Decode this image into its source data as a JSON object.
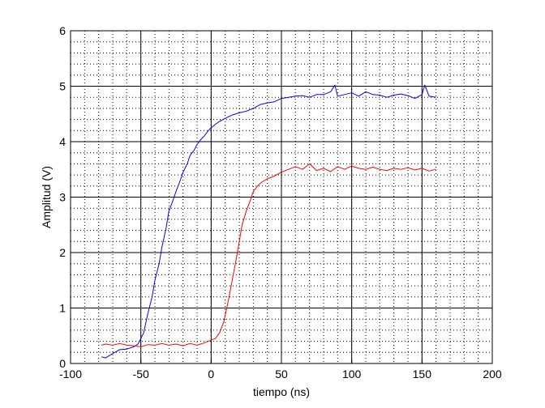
{
  "chart_data": {
    "type": "line",
    "xlabel": "tiempo (ns)",
    "ylabel": "Amplitud (V)",
    "xlim": [
      -100,
      200
    ],
    "ylim": [
      0,
      6
    ],
    "xticks": [
      -100,
      -50,
      0,
      50,
      100,
      150,
      200
    ],
    "yticks": [
      0,
      1,
      2,
      3,
      4,
      5,
      6
    ],
    "grid": true,
    "minor_grid": true,
    "series": [
      {
        "color": "#0000ff",
        "x": [
          -78,
          -75,
          -70,
          -65,
          -60,
          -55,
          -52,
          -48,
          -45,
          -42,
          -40,
          -37,
          -35,
          -32,
          -30,
          -27,
          -25,
          -22,
          -20,
          -17,
          -15,
          -12,
          -10,
          -7,
          -5,
          -2,
          0,
          5,
          10,
          15,
          20,
          25,
          30,
          35,
          40,
          45,
          50,
          55,
          60,
          65,
          70,
          75,
          80,
          85,
          88,
          90,
          95,
          100,
          105,
          110,
          115,
          120,
          125,
          130,
          135,
          140,
          145,
          150,
          152,
          155,
          160
        ],
        "y": [
          0.12,
          0.1,
          0.18,
          0.25,
          0.26,
          0.3,
          0.35,
          0.55,
          0.9,
          1.2,
          1.5,
          1.8,
          2.1,
          2.45,
          2.75,
          2.95,
          3.1,
          3.3,
          3.45,
          3.6,
          3.75,
          3.85,
          3.95,
          4.05,
          4.1,
          4.2,
          4.25,
          4.35,
          4.42,
          4.48,
          4.52,
          4.55,
          4.6,
          4.67,
          4.7,
          4.72,
          4.78,
          4.8,
          4.82,
          4.83,
          4.8,
          4.85,
          4.85,
          4.9,
          5.02,
          4.82,
          4.85,
          4.88,
          4.82,
          4.9,
          4.85,
          4.84,
          4.8,
          4.84,
          4.86,
          4.83,
          4.78,
          4.85,
          5.02,
          4.82,
          4.8
        ]
      },
      {
        "color": "#ff0000",
        "x": [
          -78,
          -75,
          -70,
          -65,
          -60,
          -55,
          -50,
          -45,
          -40,
          -35,
          -30,
          -25,
          -20,
          -15,
          -10,
          -5,
          0,
          3,
          6,
          9,
          12,
          15,
          18,
          20,
          22,
          25,
          28,
          30,
          33,
          36,
          40,
          45,
          50,
          55,
          60,
          65,
          70,
          75,
          80,
          85,
          90,
          95,
          100,
          105,
          110,
          115,
          120,
          125,
          130,
          135,
          140,
          145,
          150,
          155,
          160
        ],
        "y": [
          0.33,
          0.35,
          0.33,
          0.36,
          0.33,
          0.32,
          0.3,
          0.34,
          0.33,
          0.36,
          0.33,
          0.35,
          0.32,
          0.36,
          0.33,
          0.37,
          0.42,
          0.45,
          0.55,
          0.75,
          1.1,
          1.5,
          1.9,
          2.2,
          2.5,
          2.75,
          2.95,
          3.1,
          3.2,
          3.27,
          3.33,
          3.38,
          3.45,
          3.5,
          3.55,
          3.5,
          3.6,
          3.48,
          3.52,
          3.46,
          3.55,
          3.5,
          3.56,
          3.52,
          3.5,
          3.54,
          3.5,
          3.48,
          3.52,
          3.5,
          3.53,
          3.49,
          3.52,
          3.47,
          3.5
        ]
      }
    ]
  }
}
